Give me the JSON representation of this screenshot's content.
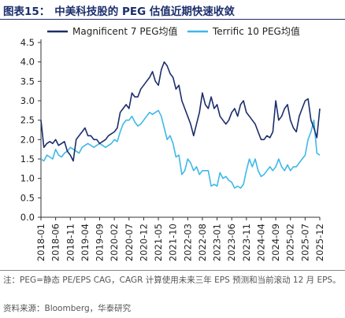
{
  "figure": {
    "number": "图表15：",
    "title": "中美科技股的 PEG 估值近期快速收敛",
    "note": "注：PEG=静态 PE/EPS CAG，CAGR 计算使用未来三年 EPS 预测和当前滚动 12 月 EPS。",
    "source": "资料来源：Bloomberg，华泰研究"
  },
  "chart_data": {
    "type": "line",
    "title": "",
    "xlabel": "",
    "ylabel": "",
    "ylim": [
      0,
      4.5
    ],
    "yticks": [
      "0.0",
      "0.5",
      "1.0",
      "1.5",
      "2.0",
      "2.5",
      "3.0",
      "3.5",
      "4.0",
      "4.5"
    ],
    "xticks": [
      "2018-01",
      "2018-06",
      "2018-11",
      "2019-04",
      "2019-09",
      "2020-02",
      "2020-07",
      "2020-12",
      "2021-05",
      "2021-10",
      "2022-03",
      "2022-08",
      "2023-01",
      "2023-06",
      "2023-11",
      "2024-04",
      "2024-09",
      "2025-02",
      "2025-07",
      "2025-12"
    ],
    "grid": false,
    "legend": "top",
    "colors": {
      "magnificent": "#1b2e6b",
      "terrific": "#3fb8e8"
    },
    "series": [
      {
        "name": "Magnificent 7 PEG均值",
        "x": [
          "2018-01",
          "2018-02",
          "2018-03",
          "2018-04",
          "2018-05",
          "2018-06",
          "2018-07",
          "2018-08",
          "2018-09",
          "2018-10",
          "2018-11",
          "2018-12",
          "2019-01",
          "2019-02",
          "2019-03",
          "2019-04",
          "2019-05",
          "2019-06",
          "2019-07",
          "2019-08",
          "2019-09",
          "2019-10",
          "2019-11",
          "2019-12",
          "2020-01",
          "2020-02",
          "2020-03",
          "2020-04",
          "2020-05",
          "2020-06",
          "2020-07",
          "2020-08",
          "2020-09",
          "2020-10",
          "2020-11",
          "2020-12",
          "2021-01",
          "2021-02",
          "2021-03",
          "2021-04",
          "2021-05",
          "2021-06",
          "2021-07",
          "2021-08",
          "2021-09",
          "2021-10",
          "2021-11",
          "2021-12",
          "2022-01",
          "2022-02",
          "2022-03",
          "2022-04",
          "2022-05",
          "2022-06",
          "2022-07",
          "2022-08",
          "2022-09",
          "2022-10",
          "2022-11",
          "2022-12",
          "2023-01",
          "2023-02",
          "2023-03",
          "2023-04",
          "2023-05",
          "2023-06",
          "2023-07",
          "2023-08",
          "2023-09",
          "2023-10",
          "2023-11",
          "2023-12",
          "2024-01",
          "2024-02",
          "2024-03",
          "2024-04",
          "2024-05",
          "2024-06",
          "2024-07",
          "2024-08",
          "2024-09",
          "2024-10",
          "2024-11",
          "2024-12",
          "2025-01",
          "2025-02",
          "2025-03",
          "2025-04",
          "2025-05",
          "2025-06",
          "2025-07",
          "2025-08",
          "2025-09",
          "2025-10",
          "2025-11",
          "2025-12"
        ],
        "values": [
          2.5,
          1.8,
          1.9,
          1.95,
          1.9,
          2.0,
          1.85,
          1.9,
          1.95,
          1.7,
          1.6,
          1.45,
          2.0,
          2.1,
          2.2,
          2.3,
          2.1,
          2.1,
          2.0,
          2.0,
          1.9,
          1.95,
          2.0,
          2.1,
          2.15,
          2.2,
          2.3,
          2.7,
          2.8,
          2.9,
          2.8,
          3.2,
          3.1,
          3.1,
          3.3,
          3.4,
          3.5,
          3.6,
          3.75,
          3.5,
          3.4,
          3.8,
          4.0,
          3.9,
          3.7,
          3.6,
          3.3,
          3.4,
          3.0,
          2.8,
          2.6,
          2.4,
          2.1,
          2.4,
          2.7,
          3.2,
          2.9,
          2.8,
          3.1,
          2.8,
          2.9,
          2.6,
          2.5,
          2.4,
          2.5,
          2.7,
          2.8,
          2.6,
          2.9,
          3.0,
          2.7,
          2.6,
          2.5,
          2.4,
          2.2,
          2.0,
          2.0,
          2.1,
          2.05,
          2.2,
          3.0,
          2.5,
          2.6,
          2.8,
          2.9,
          2.5,
          2.3,
          2.2,
          2.6,
          2.8,
          3.0,
          3.05,
          2.5,
          2.3,
          2.05,
          2.8
        ]
      },
      {
        "name": "Terrific 10 PEG均值",
        "x": [
          "2018-01",
          "2018-02",
          "2018-03",
          "2018-04",
          "2018-05",
          "2018-06",
          "2018-07",
          "2018-08",
          "2018-09",
          "2018-10",
          "2018-11",
          "2018-12",
          "2019-01",
          "2019-02",
          "2019-03",
          "2019-04",
          "2019-05",
          "2019-06",
          "2019-07",
          "2019-08",
          "2019-09",
          "2019-10",
          "2019-11",
          "2019-12",
          "2020-01",
          "2020-02",
          "2020-03",
          "2020-04",
          "2020-05",
          "2020-06",
          "2020-07",
          "2020-08",
          "2020-09",
          "2020-10",
          "2020-11",
          "2020-12",
          "2021-01",
          "2021-02",
          "2021-03",
          "2021-04",
          "2021-05",
          "2021-06",
          "2021-07",
          "2021-08",
          "2021-09",
          "2021-10",
          "2021-11",
          "2021-12",
          "2022-01",
          "2022-02",
          "2022-03",
          "2022-04",
          "2022-05",
          "2022-06",
          "2022-07",
          "2022-08",
          "2022-09",
          "2022-10",
          "2022-11",
          "2022-12",
          "2023-01",
          "2023-02",
          "2023-03",
          "2023-04",
          "2023-05",
          "2023-06",
          "2023-07",
          "2023-08",
          "2023-09",
          "2023-10",
          "2023-11",
          "2023-12",
          "2024-01",
          "2024-02",
          "2024-03",
          "2024-04",
          "2024-05",
          "2024-06",
          "2024-07",
          "2024-08",
          "2024-09",
          "2024-10",
          "2024-11",
          "2024-12",
          "2025-01",
          "2025-02",
          "2025-03",
          "2025-04",
          "2025-05",
          "2025-06",
          "2025-07",
          "2025-08",
          "2025-09",
          "2025-10",
          "2025-11",
          "2025-12"
        ],
        "values": [
          1.5,
          1.45,
          1.6,
          1.55,
          1.5,
          1.75,
          1.6,
          1.55,
          1.65,
          1.7,
          1.8,
          1.75,
          1.7,
          1.65,
          1.8,
          1.85,
          1.9,
          1.85,
          1.8,
          1.85,
          1.9,
          1.85,
          1.8,
          1.85,
          1.9,
          2.0,
          1.95,
          2.2,
          2.4,
          2.5,
          2.5,
          2.6,
          2.45,
          2.35,
          2.4,
          2.5,
          2.6,
          2.7,
          2.65,
          2.7,
          2.75,
          2.6,
          2.3,
          2.0,
          2.1,
          1.9,
          1.55,
          1.6,
          1.1,
          1.2,
          1.5,
          1.4,
          1.2,
          1.3,
          1.1,
          1.2,
          1.2,
          1.2,
          0.8,
          0.85,
          0.8,
          1.15,
          1.0,
          1.05,
          0.95,
          0.9,
          0.75,
          0.8,
          0.75,
          0.85,
          1.2,
          1.5,
          1.3,
          1.5,
          1.2,
          1.05,
          1.1,
          1.2,
          1.3,
          1.2,
          1.3,
          1.5,
          1.3,
          1.2,
          1.35,
          1.2,
          1.3,
          1.3,
          1.4,
          1.5,
          1.6,
          2.0,
          2.2,
          2.5,
          1.65,
          1.6
        ]
      }
    ]
  }
}
